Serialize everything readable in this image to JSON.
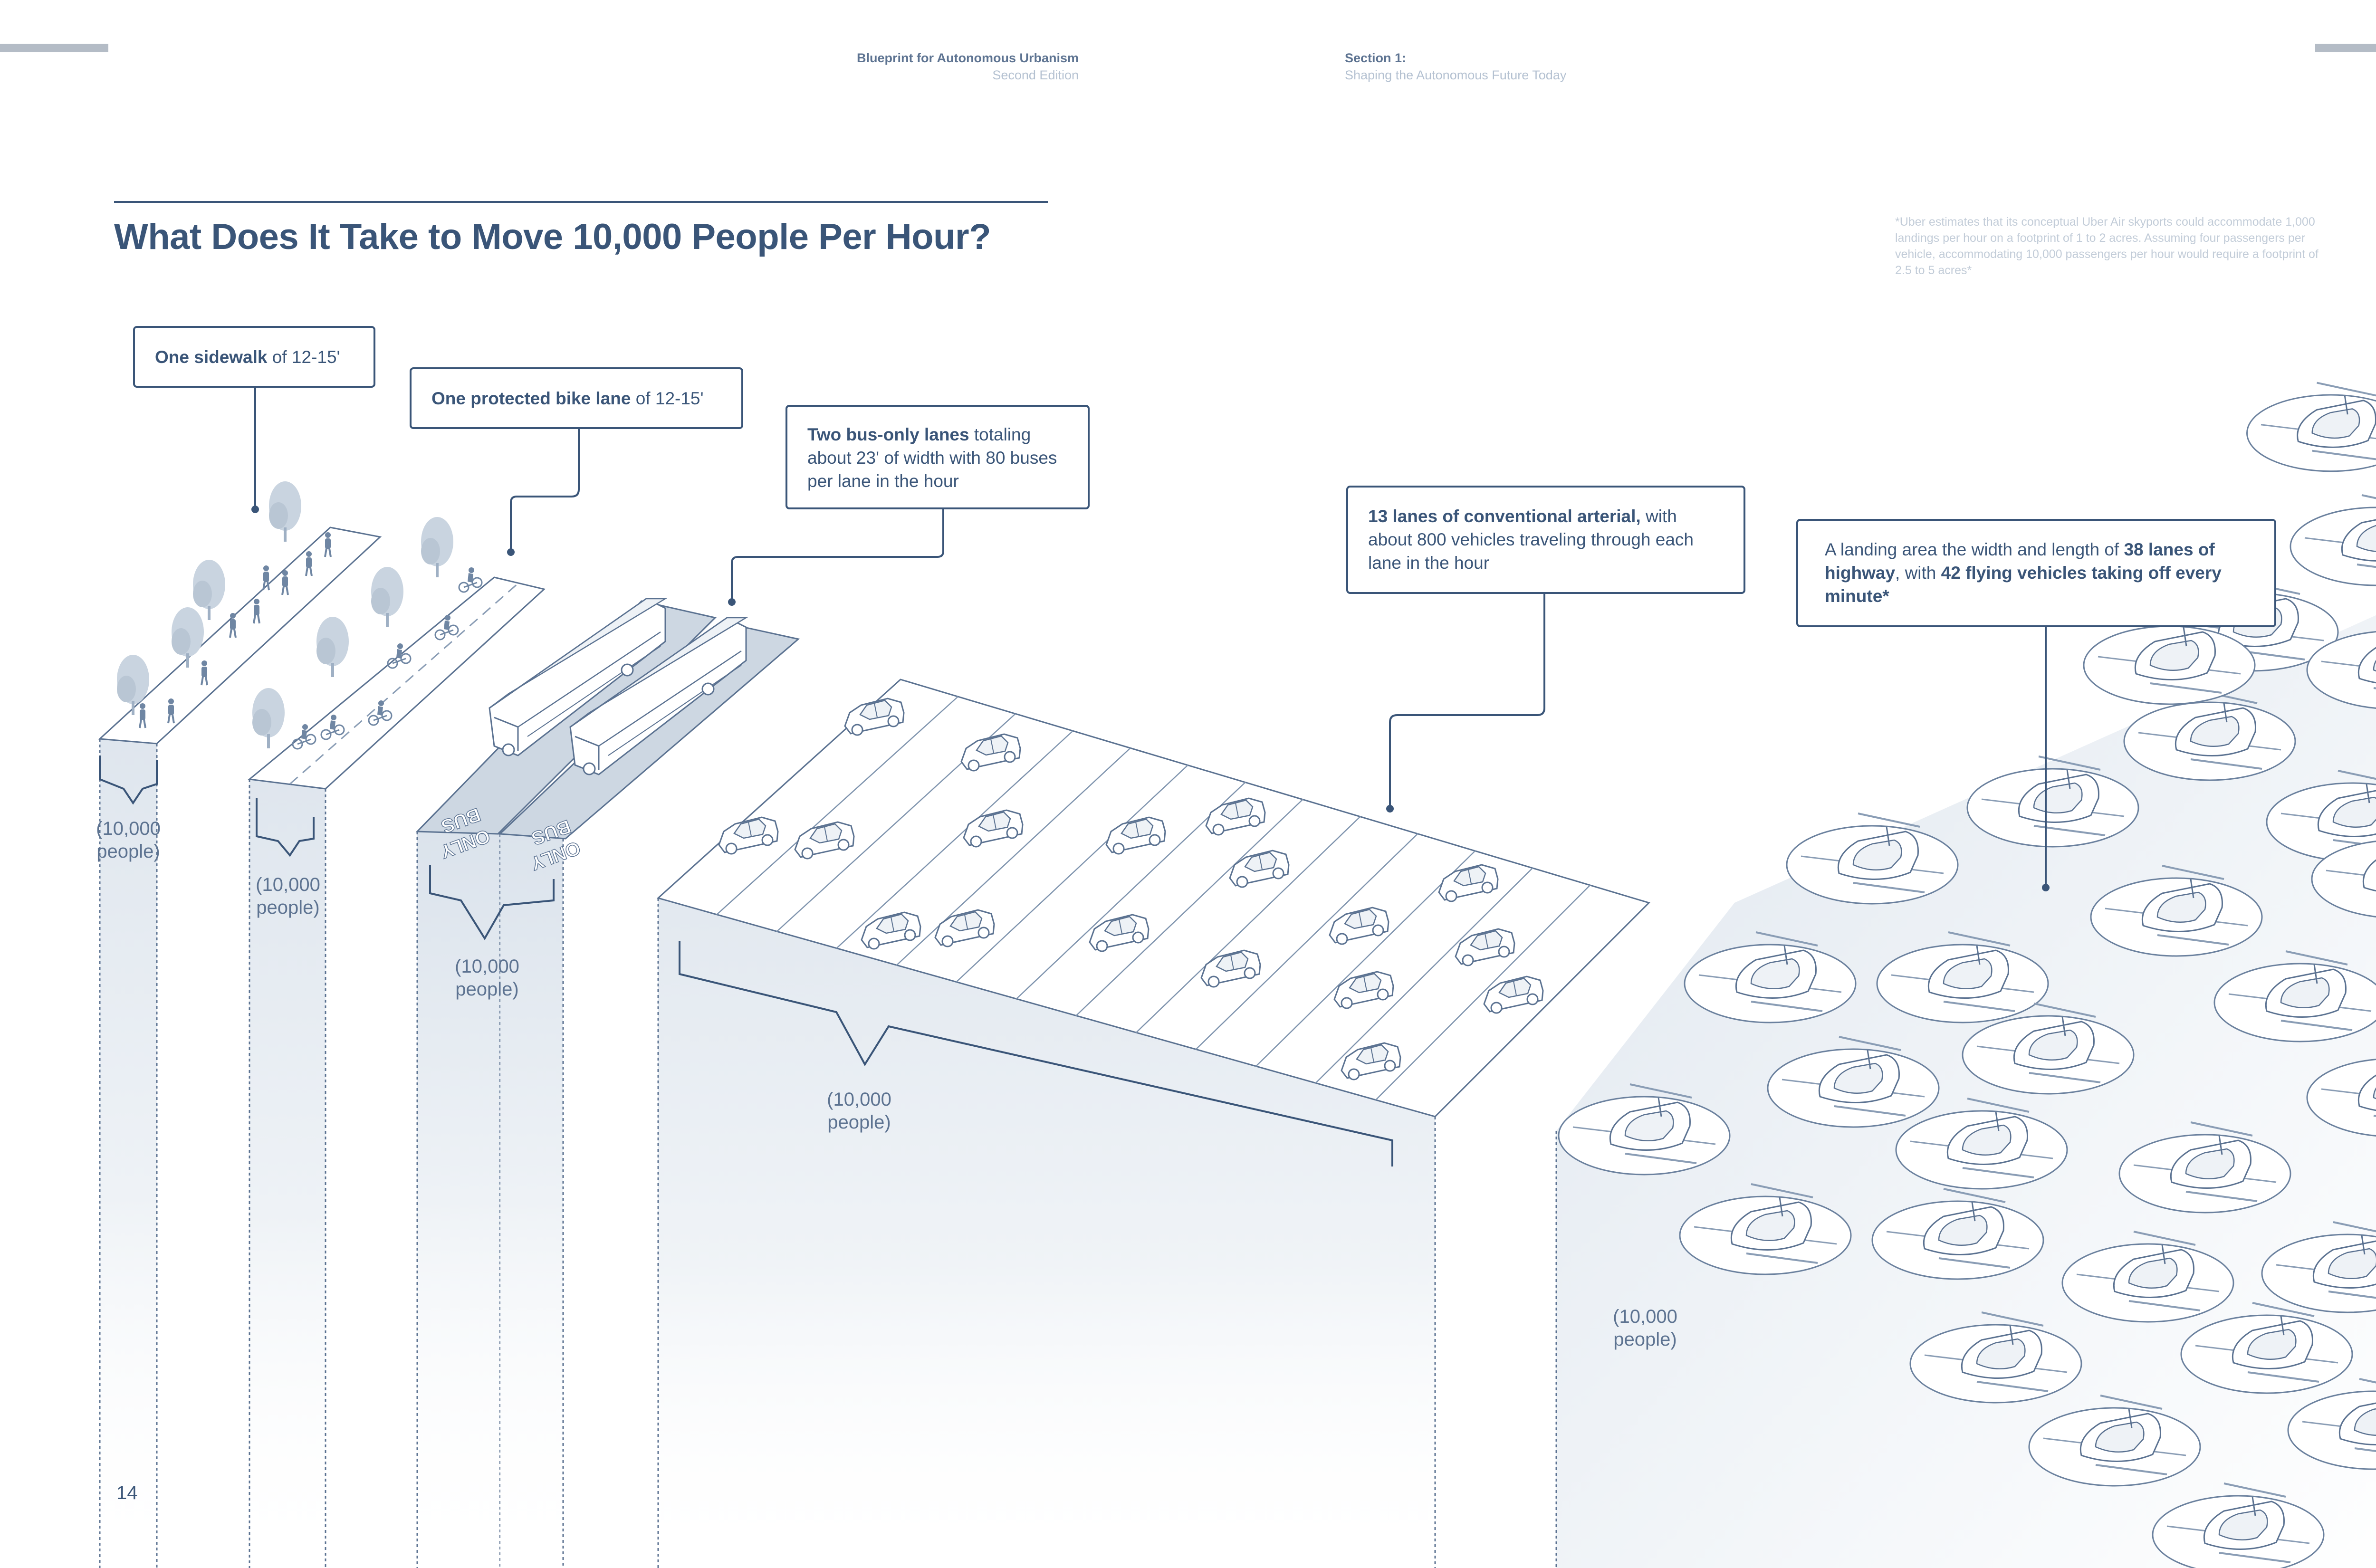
{
  "header": {
    "book_title": "Blueprint for Autonomous Urbanism",
    "edition": "Second Edition",
    "section_label": "Section 1:",
    "section_title": "Shaping the Autonomous Future Today"
  },
  "title": "What Does It Take to Move 10,000 People Per Hour?",
  "footnote": "*Uber estimates that its conceptual Uber Air skyports could accommodate 1,000 landings per hour on a footprint of 1 to 2 acres. Assuming four passengers per vehicle, accommodating 10,000 passengers per hour would require a footprint of 2.5 to 5 acres*",
  "callouts": {
    "sidewalk": {
      "bold": "One sidewalk",
      "rest": " of 12-15'"
    },
    "bike": {
      "bold": "One protected bike lane",
      "rest": " of 12-15'"
    },
    "bus": {
      "bold": "Two bus-only lanes",
      "rest": " totaling about 23' of width with 80 buses per lane in the hour"
    },
    "arterial": {
      "bold": "13 lanes of conventional arterial,",
      "rest": " with about 800 vehicles traveling through each lane in the hour"
    },
    "air": {
      "pre": "A landing area the width and length of ",
      "bold1": "38 lanes of highway",
      "mid": ", with ",
      "bold2": "42 flying vehicles taking off every minute*"
    }
  },
  "people_label": {
    "line1": "(10,000",
    "line2": "people)"
  },
  "bus_marking": {
    "line1": "BUS",
    "line2": "ONLY"
  },
  "page_number": "14",
  "colors": {
    "primary": "#3a5578",
    "muted": "#b4c1d1",
    "fill": "#e3e9f0",
    "accent": "#c9d4e0"
  },
  "icons": [
    "tree-icon",
    "pedestrian-icon",
    "cyclist-icon",
    "bus-icon",
    "car-icon",
    "flying-vehicle-icon"
  ]
}
